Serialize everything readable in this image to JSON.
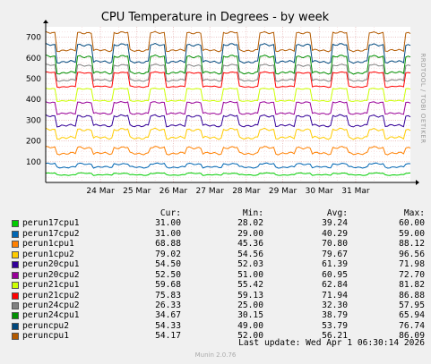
{
  "chart_data": {
    "type": "line",
    "title": "CPU Temperature in Degrees - by week",
    "side_label": "RRDTOOL / TOBI OETIKER",
    "ylim": [
      0,
      750
    ],
    "yticks": [
      100,
      200,
      300,
      400,
      500,
      600,
      700
    ],
    "xlim_days": [
      -1.5,
      8.5
    ],
    "xticks": [
      {
        "label": "24 Mar",
        "day": 0
      },
      {
        "label": "25 Mar",
        "day": 1
      },
      {
        "label": "26 Mar",
        "day": 2
      },
      {
        "label": "27 Mar",
        "day": 3
      },
      {
        "label": "28 Mar",
        "day": 4
      },
      {
        "label": "29 Mar",
        "day": 5
      },
      {
        "label": "30 Mar",
        "day": 6
      },
      {
        "label": "31 Mar",
        "day": 7
      }
    ],
    "grid": true,
    "stacked": true,
    "legend_headers": {
      "cur": "Cur:",
      "min": "Min:",
      "avg": "Avg:",
      "max": "Max:"
    },
    "series": [
      {
        "name": "perun17cpu1",
        "color": "#00cc00",
        "cur": "31.00",
        "min": "28.02",
        "avg": "39.24",
        "max": "60.00"
      },
      {
        "name": "perun17cpu2",
        "color": "#0066b3",
        "cur": "31.00",
        "min": "29.00",
        "avg": "40.29",
        "max": "59.00"
      },
      {
        "name": "perun1cpu1",
        "color": "#ff8000",
        "cur": "68.88",
        "min": "45.36",
        "avg": "70.80",
        "max": "88.12"
      },
      {
        "name": "perun1cpu2",
        "color": "#ffcc00",
        "cur": "79.02",
        "min": "54.56",
        "avg": "79.67",
        "max": "96.56"
      },
      {
        "name": "perun20cpu1",
        "color": "#330099",
        "cur": "54.50",
        "min": "52.03",
        "avg": "61.39",
        "max": "71.98"
      },
      {
        "name": "perun20cpu2",
        "color": "#990099",
        "cur": "52.50",
        "min": "51.00",
        "avg": "60.95",
        "max": "72.70"
      },
      {
        "name": "perun21cpu1",
        "color": "#ccff00",
        "cur": "59.68",
        "min": "55.42",
        "avg": "62.84",
        "max": "81.82"
      },
      {
        "name": "perun21cpu2",
        "color": "#ff0000",
        "cur": "75.83",
        "min": "59.13",
        "avg": "71.94",
        "max": "86.88"
      },
      {
        "name": "perun24cpu2",
        "color": "#808080",
        "cur": "26.33",
        "min": "25.00",
        "avg": "32.30",
        "max": "57.95"
      },
      {
        "name": "perun24cpu1",
        "color": "#008f00",
        "cur": "34.67",
        "min": "30.15",
        "avg": "38.79",
        "max": "65.94"
      },
      {
        "name": "peruncpu2",
        "color": "#00487d",
        "cur": "54.33",
        "min": "49.00",
        "avg": "53.79",
        "max": "76.74"
      },
      {
        "name": "peruncpu1",
        "color": "#b35a00",
        "cur": "54.17",
        "min": "52.00",
        "avg": "56.21",
        "max": "86.09"
      }
    ]
  },
  "footer": {
    "last_update": "Last update: Wed Apr  1 06:30:14 2026",
    "generator": "Munin 2.0.76"
  }
}
